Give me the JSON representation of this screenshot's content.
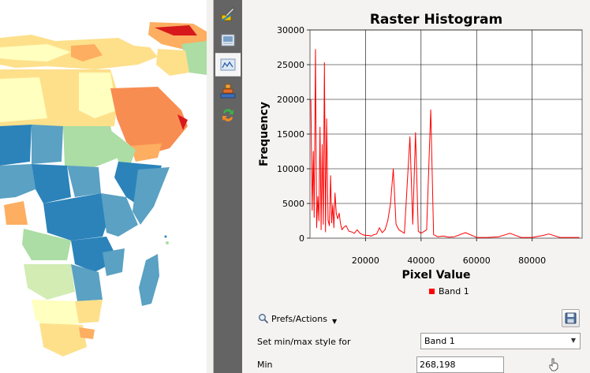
{
  "toolbar": {
    "buttons": [
      {
        "icon": "paint-brush-icon",
        "active": false
      },
      {
        "icon": "transparency-icon",
        "active": false
      },
      {
        "icon": "histogram-icon",
        "active": true
      },
      {
        "icon": "pyramids-icon",
        "active": false
      },
      {
        "icon": "rendering-icon",
        "active": false
      }
    ]
  },
  "chart_data": {
    "type": "line",
    "title": "Raster Histogram",
    "xlabel": "Pixel Value",
    "ylabel": "Frequency",
    "xlim": [
      0,
      98000
    ],
    "ylim": [
      0,
      30000
    ],
    "x_ticks": [
      20000,
      40000,
      60000,
      80000
    ],
    "x_tick_labels": [
      "20000",
      "40000",
      "60000",
      "80000"
    ],
    "y_ticks": [
      0,
      5000,
      10000,
      15000,
      20000,
      25000,
      30000
    ],
    "y_tick_labels": [
      "0",
      "5000",
      "10000",
      "15000",
      "20000",
      "25000",
      "30000"
    ],
    "grid": true,
    "legend": "bottom-center",
    "series": [
      {
        "name": "Band 1",
        "color": "#ff0000",
        "x": [
          300,
          800,
          1200,
          1500,
          2000,
          2400,
          2800,
          3200,
          3600,
          4000,
          4400,
          4800,
          5200,
          5600,
          6000,
          6500,
          7000,
          7400,
          7800,
          8200,
          8600,
          9000,
          9500,
          10000,
          10500,
          11000,
          11500,
          12000,
          13000,
          14000,
          15000,
          16000,
          17000,
          18000,
          19000,
          20000,
          21000,
          22000,
          23000,
          24000,
          25000,
          26000,
          27000,
          28000,
          29000,
          30000,
          31000,
          32000,
          34000,
          36000,
          37000,
          38000,
          39000,
          40000,
          42000,
          43500,
          44500,
          46000,
          48000,
          50000,
          52000,
          56000,
          60000,
          64000,
          68000,
          72000,
          76000,
          80000,
          84000,
          86000,
          90000,
          94000,
          97000
        ],
        "y": [
          20000,
          4000,
          12500,
          3000,
          27200,
          1500,
          6000,
          2500,
          16000,
          1200,
          13500,
          2000,
          25300,
          900,
          17200,
          2600,
          1800,
          9000,
          2200,
          4800,
          1500,
          6500,
          3500,
          2800,
          3600,
          2100,
          1200,
          1500,
          1800,
          1000,
          900,
          700,
          1200,
          700,
          500,
          400,
          400,
          300,
          500,
          600,
          1500,
          800,
          1200,
          2500,
          5000,
          10000,
          2000,
          1200,
          700,
          14600,
          2000,
          15200,
          1000,
          700,
          1200,
          18500,
          500,
          200,
          300,
          150,
          200,
          800,
          100,
          100,
          200,
          700,
          100,
          100,
          400,
          600,
          100,
          100,
          100
        ]
      }
    ]
  },
  "legend": {
    "band_label": "Band 1"
  },
  "controls": {
    "prefs_label": "Prefs/Actions",
    "minmax_label": "Set min/max style for",
    "band_selected": "Band 1",
    "min_label": "Min",
    "min_value": "268,198"
  },
  "colors": {
    "accent": "#ff0000",
    "map_palette": [
      "#2b83ba",
      "#5aa1c3",
      "#abdda4",
      "#d2ecb4",
      "#ffffbf",
      "#fee08b",
      "#fdae61",
      "#f88d52",
      "#d7191c"
    ]
  }
}
